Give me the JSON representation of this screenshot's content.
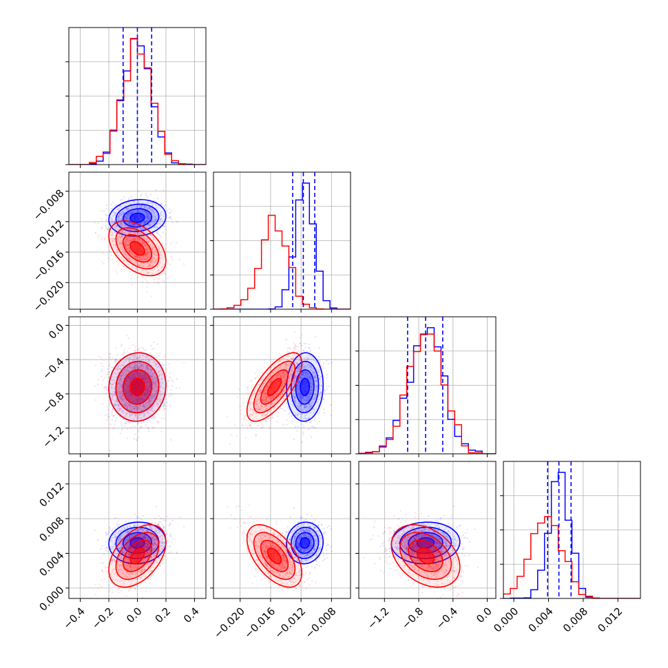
{
  "chart_data": {
    "type": "corner",
    "parameters": 4,
    "series": [
      {
        "color": "#0000ff",
        "mean": [
          0.0,
          -0.0115,
          -0.72,
          0.0052
        ],
        "sd": [
          0.1,
          0.0012,
          0.2,
          0.0012
        ],
        "corr": [
          [
            1,
            0.1,
            0.05,
            0.05
          ],
          [
            0.1,
            1,
            0.05,
            0.05
          ],
          [
            0.05,
            0.05,
            1,
            0.05
          ],
          [
            0.05,
            0.05,
            0.05,
            1
          ]
        ]
      },
      {
        "color": "#ff0000",
        "mean": [
          0.0,
          -0.0155,
          -0.72,
          0.0037
        ],
        "sd": [
          0.1,
          0.0018,
          0.2,
          0.0018
        ],
        "corr": [
          [
            1,
            -0.45,
            0.05,
            0.45
          ],
          [
            -0.45,
            1,
            0.7,
            -0.55
          ],
          [
            0.05,
            0.7,
            1,
            -0.35
          ],
          [
            0.45,
            -0.55,
            -0.35,
            1
          ]
        ]
      }
    ],
    "quantile_lines": {
      "color": "#0000ff",
      "values": [
        [
          -0.1,
          0.0,
          0.1
        ],
        [
          -0.0131,
          -0.0117,
          -0.0102
        ],
        [
          -0.93,
          -0.72,
          -0.52
        ],
        [
          0.0039,
          0.0052,
          0.0066
        ]
      ]
    },
    "axes": [
      {
        "range": [
          -0.48,
          0.48
        ],
        "ticks": [
          -0.4,
          -0.2,
          0.0,
          0.2,
          0.4
        ],
        "tick_labels": [
          "−0.4",
          "−0.2",
          "0.0",
          "0.2",
          "0.4"
        ]
      },
      {
        "range": [
          -0.0235,
          -0.0055
        ],
        "ticks": [
          -0.02,
          -0.016,
          -0.012,
          -0.008
        ],
        "tick_labels": [
          "−0.020",
          "−0.016",
          "−0.012",
          "−0.008"
        ]
      },
      {
        "range": [
          -1.5,
          0.1
        ],
        "ticks": [
          -1.2,
          -0.8,
          -0.4,
          0.0
        ],
        "tick_labels": [
          "−1.2",
          "−0.8",
          "−0.4",
          "0.0"
        ]
      },
      {
        "range": [
          -0.0012,
          0.0146
        ],
        "ticks": [
          0.0,
          0.004,
          0.008,
          0.012
        ],
        "tick_labels": [
          "0.000",
          "0.004",
          "0.008",
          "0.012"
        ]
      }
    ],
    "grid": true
  }
}
